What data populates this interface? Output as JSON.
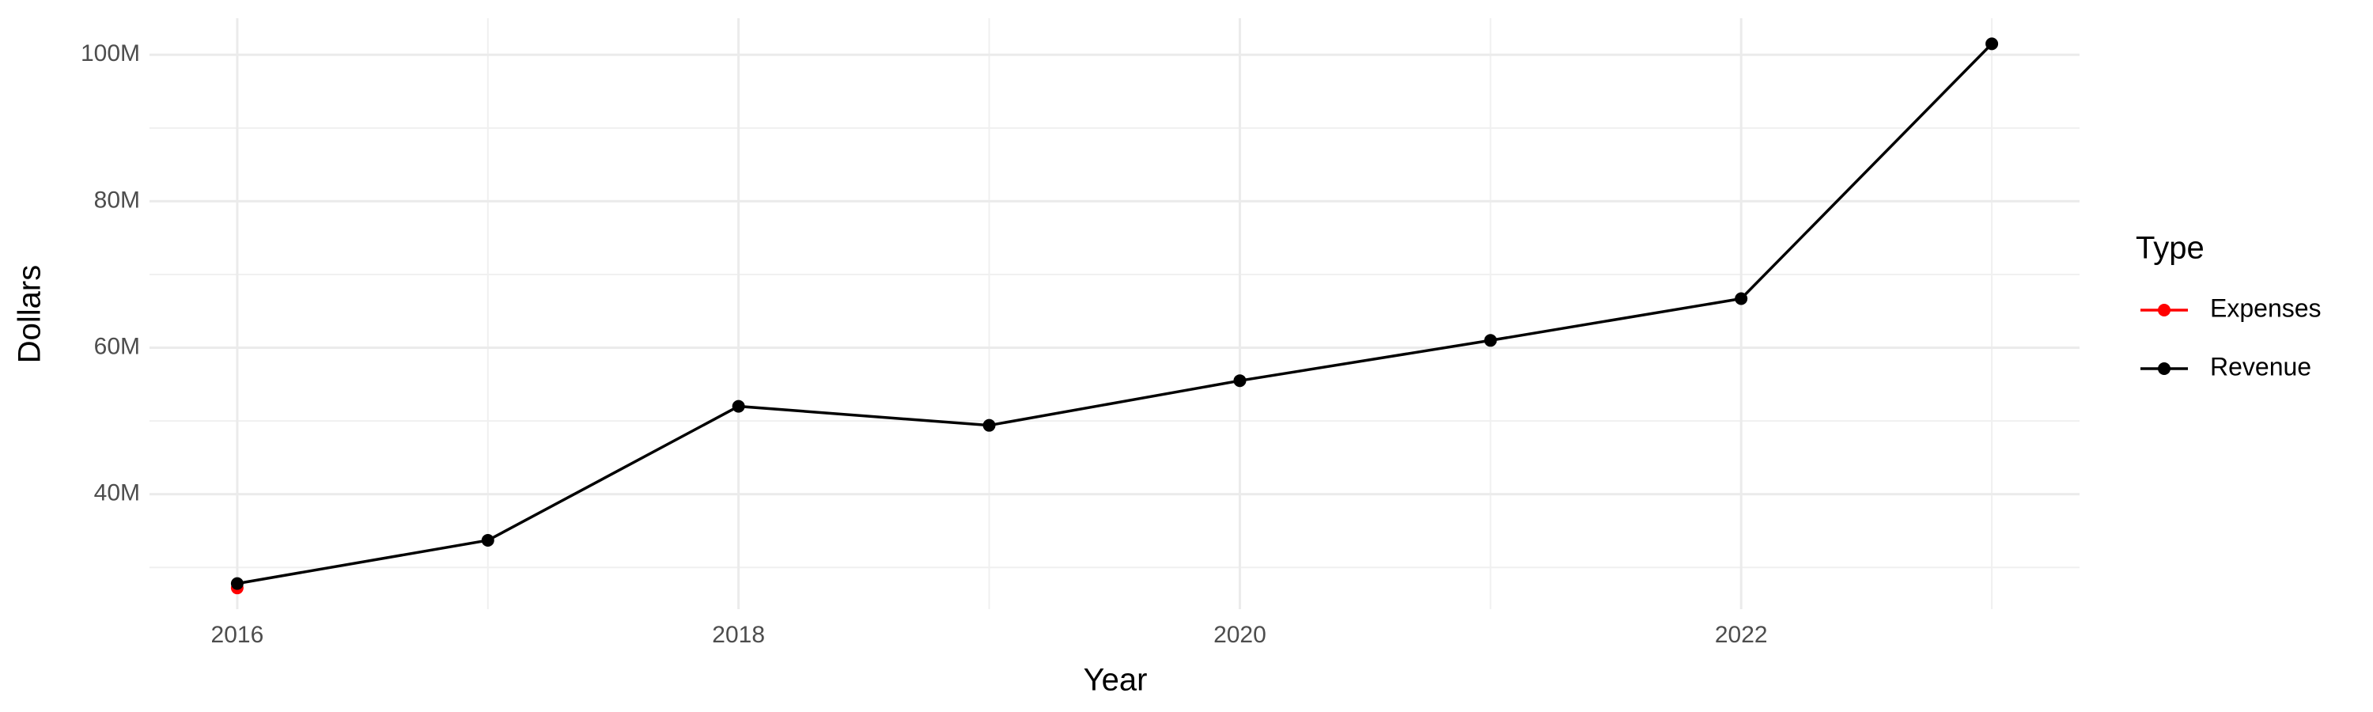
{
  "chart_data": {
    "type": "line",
    "x_label": "Year",
    "y_label": "Dollars",
    "legend_title": "Type",
    "x": [
      2016,
      2017,
      2018,
      2019,
      2020,
      2021,
      2022,
      2023
    ],
    "series": [
      {
        "name": "Expenses",
        "color": "#ff0000",
        "values": [
          27200000,
          null,
          null,
          null,
          null,
          null,
          null,
          null
        ]
      },
      {
        "name": "Revenue",
        "color": "#000000",
        "values": [
          27800000,
          33700000,
          52000000,
          49400000,
          55500000,
          61000000,
          66700000,
          101500000
        ]
      }
    ],
    "xlim": [
      2015.65,
      2023.35
    ],
    "xticks": [
      2016,
      2018,
      2020,
      2022
    ],
    "ylim": [
      24300000,
      105000000
    ],
    "yticks": [
      {
        "value": 40000000,
        "label": "40M"
      },
      {
        "value": 60000000,
        "label": "60M"
      },
      {
        "value": 80000000,
        "label": "80M"
      },
      {
        "value": 100000000,
        "label": "100M"
      }
    ],
    "grid": true,
    "legend": "right"
  }
}
